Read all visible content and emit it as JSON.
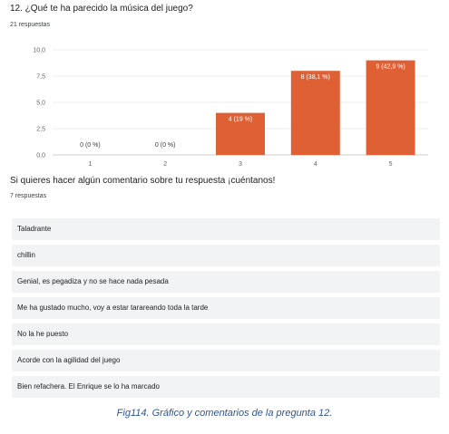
{
  "question1": {
    "title": "12. ¿Qué te ha parecido la música del juego?",
    "count": "21 respuestas"
  },
  "chart_data": {
    "type": "bar",
    "categories": [
      "1",
      "2",
      "3",
      "4",
      "5"
    ],
    "values": [
      0,
      0,
      4,
      8,
      9
    ],
    "labels": [
      "0 (0 %)",
      "0 (0 %)",
      "4 (19 %)",
      "8 (38,1 %)",
      "9 (42,9 %)"
    ],
    "ylim": [
      0,
      10
    ],
    "yticks": [
      "0,0",
      "2,5",
      "5,0",
      "7,5",
      "10,0"
    ],
    "ytick_values": [
      0,
      2.5,
      5,
      7.5,
      10
    ],
    "bar_color": "#e06035",
    "grid": true
  },
  "question2": {
    "title": "Si quieres hacer algún comentario sobre tu respuesta ¡cuéntanos!",
    "count": "7 respuestas",
    "responses": [
      "Taladrante",
      "chillin",
      "Genial, es pegadiza y no se hace nada pesada",
      "Me ha gustado mucho, voy a estar tarareando toda la tarde",
      "No la he puesto",
      "Acorde con la agilidad del juego",
      "Bien refachera. El Enrique se lo ha marcado"
    ]
  },
  "caption": "Fig114. Gráfico y comentarios de la pregunta 12."
}
